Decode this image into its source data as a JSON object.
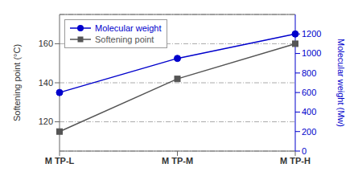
{
  "chart_data": {
    "type": "line",
    "categories": [
      "M TP-L",
      "M TP-M",
      "M TP-H"
    ],
    "series": [
      {
        "name": "Molecular weight",
        "color": "#0000cc",
        "values": [
          600,
          950,
          1200
        ],
        "axis": "y2",
        "marker": "circle"
      },
      {
        "name": "Softening point",
        "color": "#555555",
        "values": [
          115,
          142,
          160
        ],
        "axis": "y",
        "marker": "square"
      }
    ],
    "ylabel": "Softening point (°C)",
    "y2label": "Molecular weight (Mw)",
    "ylim": [
      105,
      175
    ],
    "yticks": [
      120,
      140,
      160
    ],
    "y2lim": [
      0,
      1400
    ],
    "y2ticks": [
      0,
      200,
      400,
      600,
      800,
      1000,
      1200
    ],
    "grid": true,
    "legend": "upper left"
  }
}
